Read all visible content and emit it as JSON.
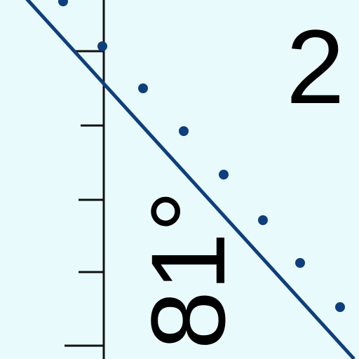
{
  "colors": {
    "background": "#e9fafd",
    "line": "#0e3f7c",
    "dots": "#0e3f7c",
    "axis": "#111111",
    "text": "#000000"
  },
  "labels": {
    "angle": "81°",
    "corner_number": "2"
  }
}
